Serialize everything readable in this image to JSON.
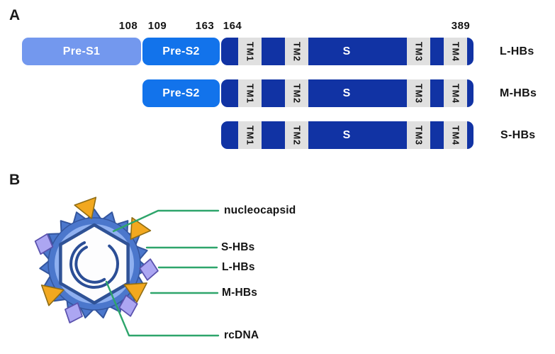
{
  "figure": {
    "type": "schematic",
    "subject": "HBV surface proteins and virion structure"
  },
  "panelA": {
    "label": "A",
    "positions": [
      "108",
      "109",
      "163",
      "164",
      "389"
    ],
    "domains": {
      "pre_s1": "Pre-S1",
      "pre_s2": "Pre-S2",
      "tm1": "TM1",
      "tm2": "TM2",
      "s": "S",
      "tm3": "TM3",
      "tm4": "TM4"
    },
    "rows": [
      {
        "label": "L-HBs"
      },
      {
        "label": "M-HBs"
      },
      {
        "label": "S-HBs"
      }
    ]
  },
  "panelB": {
    "label": "B",
    "annotations": [
      {
        "label": "nucleocapsid"
      },
      {
        "label": "S-HBs"
      },
      {
        "label": "L-HBs"
      },
      {
        "label": "M-HBs"
      },
      {
        "label": "rcDNA"
      }
    ]
  },
  "colors": {
    "pre_s1_fill": "#7398EE",
    "pre_s2_fill": "#1273EB",
    "s_domain_fill": "#1133A4",
    "tm_box_fill": "#E0E0E0",
    "envelope_spike_fill": "#4B77CC",
    "envelope_spike_stroke": "#34569E",
    "envelope_disc_fill": "#8FB0F0",
    "capsid_stroke": "#2F5296",
    "rcdna_stroke": "#2B4E96",
    "m_hbs_triangle_fill": "#F2A81F",
    "l_hbs_diamond_fill": "#ACA6F2",
    "annotation_line": "#2EA56B"
  }
}
